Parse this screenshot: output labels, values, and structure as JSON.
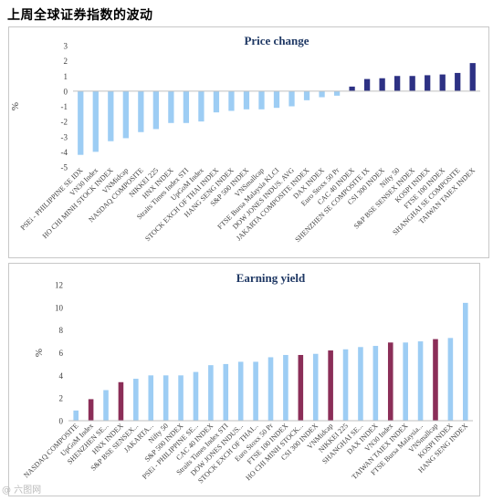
{
  "page": {
    "title": "上周全球证券指数的波动",
    "watermark": "@ 六图网"
  },
  "colors": {
    "light_bar": "#9dcdf4",
    "dark_bar": "#2d3184",
    "maroon_bar": "#8b2e58",
    "title_color": "#1f3864",
    "grid": "#d9d9d9"
  },
  "chart_data": [
    {
      "type": "bar",
      "title": "Price change",
      "ylabel": "%",
      "ylim": [
        -5,
        3
      ],
      "yticks": [
        3,
        2,
        1,
        0,
        -1,
        -2,
        -3,
        -4,
        -5
      ],
      "grid": false,
      "categories": [
        "PSEi - PHILIPPINE SE IDX",
        "VN30 Index",
        "HO CHI MINH STOCK INDEX",
        "VNMidcap",
        "NASDAQ COMPOSITE",
        "NIKKEI 225",
        "HNX INDEX",
        "Straits Times Index STI",
        "UpGoM Index",
        "STOCK EXCH OF THAI INDEX",
        "HANG SENG INDEX",
        "S&P 500 INDEX",
        "VNSmallcap",
        "FTSE Bursa Malaysia KLCI",
        "DOW JONES INDUS. AVG",
        "JAKARTA COMPOSITE INDEX",
        "DAX INDEX",
        "Euro Stoxx 50 Pr",
        "CAC 40 INDEX",
        "SHENZHEN SE COMPOSITE IX",
        "CSI 300 INDEX",
        "Nifty 50",
        "S&P BSE SENSEX INDEX",
        "KOSPI INDEX",
        "FTSE 100 INDEX",
        "SHANGHAI SE COMPOSITE",
        "TAIWAN TAIEX INDEX"
      ],
      "values": [
        -4.2,
        -4.0,
        -3.3,
        -3.1,
        -2.7,
        -2.5,
        -2.1,
        -2.1,
        -2.0,
        -1.4,
        -1.3,
        -1.2,
        -1.2,
        -1.1,
        -1.0,
        -0.6,
        -0.4,
        -0.3,
        0.3,
        0.8,
        0.85,
        1.0,
        1.0,
        1.05,
        1.1,
        1.2,
        1.85
      ],
      "highlight": [
        "light",
        "light",
        "light",
        "light",
        "light",
        "light",
        "light",
        "light",
        "light",
        "light",
        "light",
        "light",
        "light",
        "light",
        "light",
        "light",
        "light",
        "light",
        "dark",
        "dark",
        "dark",
        "dark",
        "dark",
        "dark",
        "dark",
        "dark",
        "dark"
      ]
    },
    {
      "type": "bar",
      "title": "Earning yield",
      "ylabel": "%",
      "ylim": [
        0,
        12
      ],
      "yticks": [
        12,
        10,
        8,
        6,
        4,
        2,
        0
      ],
      "grid": false,
      "categories": [
        "NASDAQ COMPOSITE",
        "UpGoM Index",
        "SHENZHEN SE...",
        "HNX INDEX",
        "S&P BSE SENSEX...",
        "JAKARTA...",
        "Nifty 50",
        "S&P 500 INDEX",
        "PSEi - PHILIPPINE SE...",
        "CAC 40 INDEX",
        "Straits Times Index STI",
        "DOW JONES INDUS...",
        "STOCK EXCH OF THAI...",
        "Euro Stoxx 50 Pr",
        "FTSE 100 INDEX",
        "HO CHI MINH STOCK...",
        "CSI 300 INDEX",
        "VNMidcap",
        "NIKKEI 225",
        "SHANGHAI SE...",
        "DAX INDEX",
        "VN30 Index",
        "TAIWAN TAIEX INDEX",
        "FTSE Bursa Malaysia...",
        "VNSmallcap",
        "KOSPI INDEX",
        "HANG SENG INDEX"
      ],
      "values": [
        0.9,
        1.9,
        2.7,
        3.4,
        3.7,
        4.0,
        4.0,
        4.0,
        4.3,
        4.9,
        5.0,
        5.2,
        5.2,
        5.6,
        5.8,
        5.8,
        5.9,
        6.2,
        6.3,
        6.5,
        6.6,
        6.9,
        6.9,
        7.0,
        7.2,
        7.3,
        10.4
      ],
      "highlight": [
        "light",
        "maroon",
        "light",
        "maroon",
        "light",
        "light",
        "light",
        "light",
        "light",
        "light",
        "light",
        "light",
        "light",
        "light",
        "light",
        "maroon",
        "light",
        "maroon",
        "light",
        "light",
        "light",
        "maroon",
        "light",
        "light",
        "maroon",
        "light",
        "light"
      ]
    }
  ]
}
